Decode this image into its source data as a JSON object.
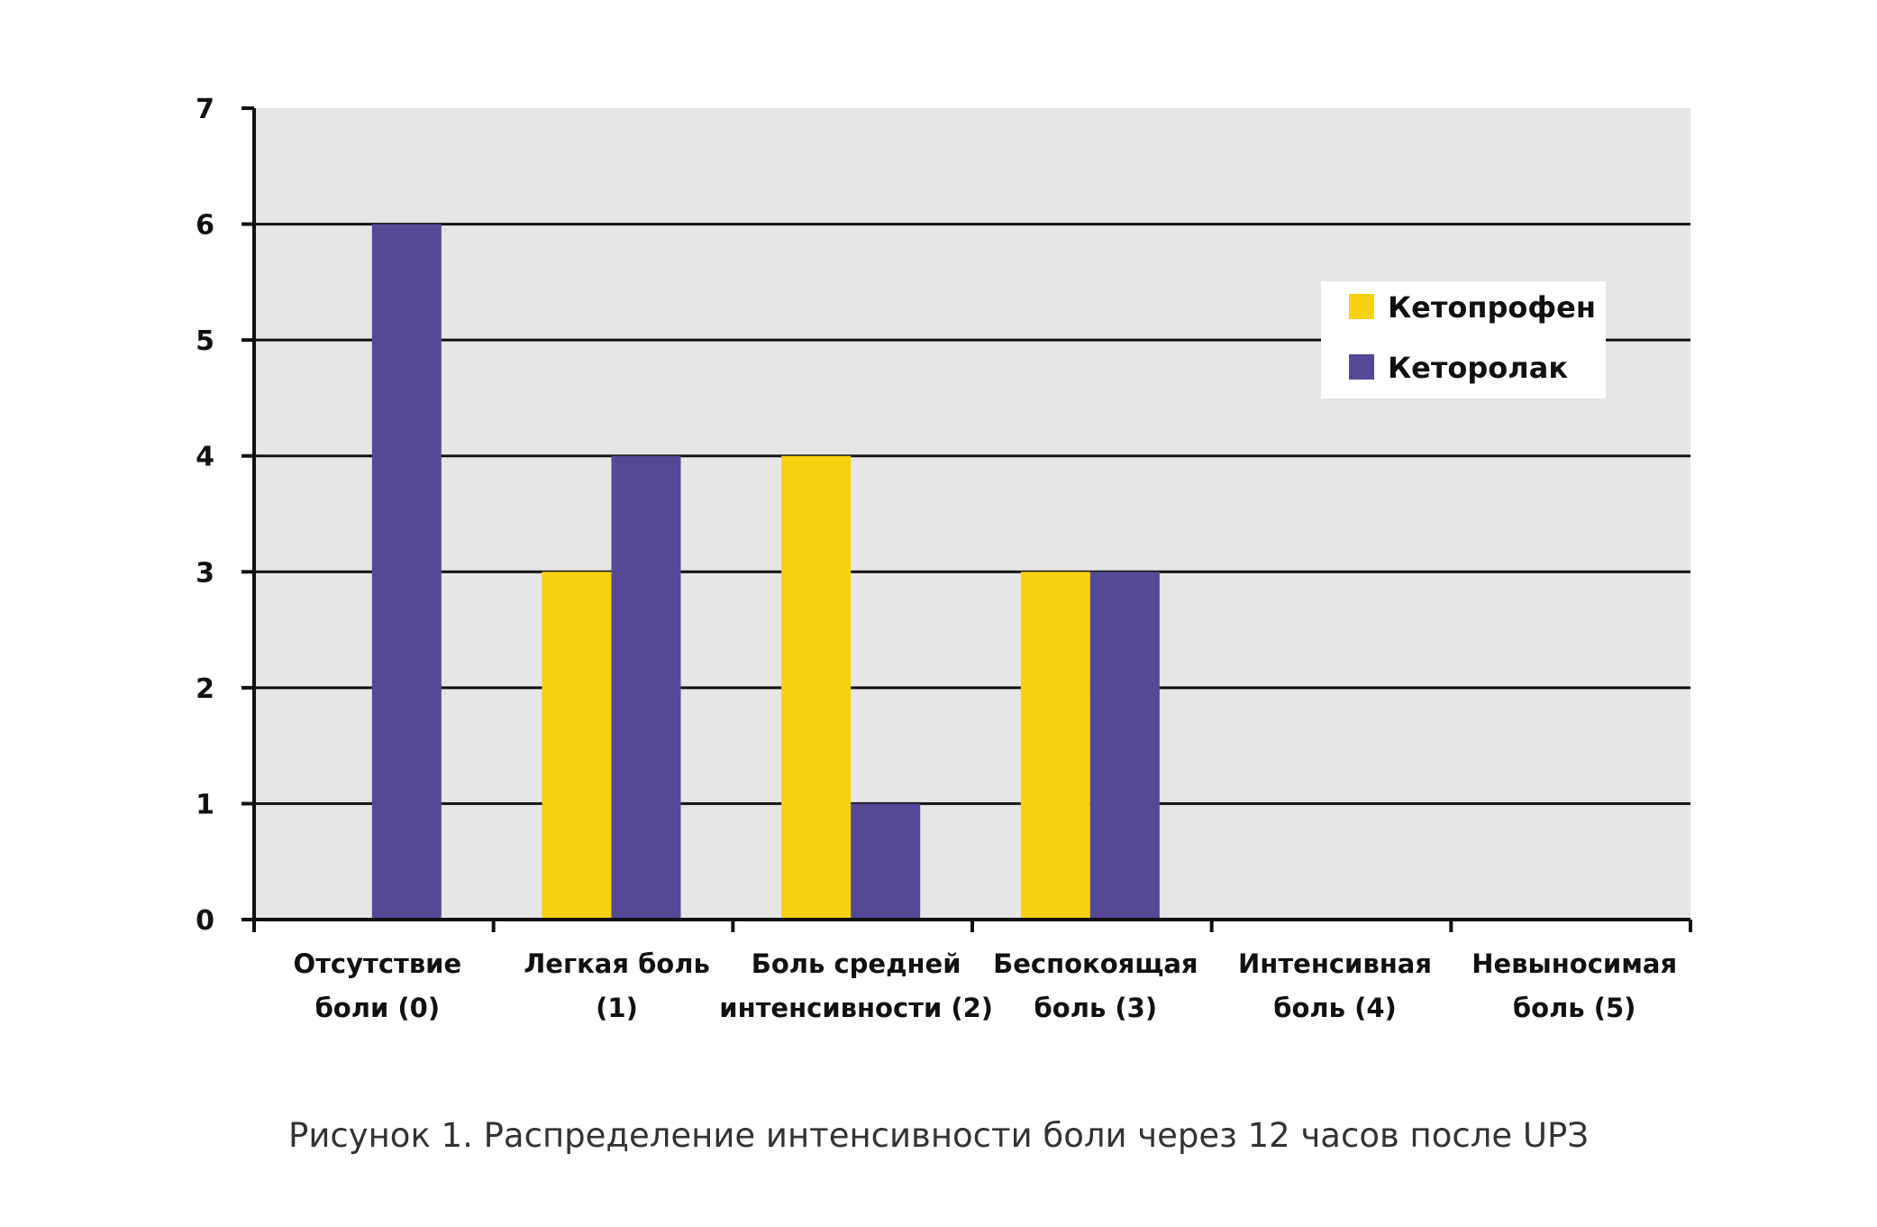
{
  "chart_data": {
    "type": "bar",
    "categories": [
      [
        "Отсутствие",
        "боли (0)"
      ],
      [
        "Легкая боль",
        "(1)"
      ],
      [
        "Боль средней",
        "интенсивности (2)"
      ],
      [
        "Беспокоящая",
        "боль (3)"
      ],
      [
        "Интенсивная",
        "боль (4)"
      ],
      [
        "Невыносимая",
        "боль (5)"
      ]
    ],
    "series": [
      {
        "name": "Кетопрофен",
        "color": "#f5d10f",
        "values": [
          0,
          3,
          4,
          3,
          0,
          0
        ]
      },
      {
        "name": "Кеторолак",
        "color": "#554896",
        "values": [
          6,
          4,
          1,
          3,
          0,
          0
        ]
      }
    ],
    "ylim": [
      0,
      7
    ],
    "yticks": [
      "0",
      "1",
      "2",
      "3",
      "4",
      "5",
      "6",
      "7"
    ],
    "grid": true,
    "plot_background": "#e6e6e6",
    "legend_position": "top-right"
  },
  "caption": "Рисунок 1. Распределение интенсивности боли через 12 часов после UPЗ"
}
